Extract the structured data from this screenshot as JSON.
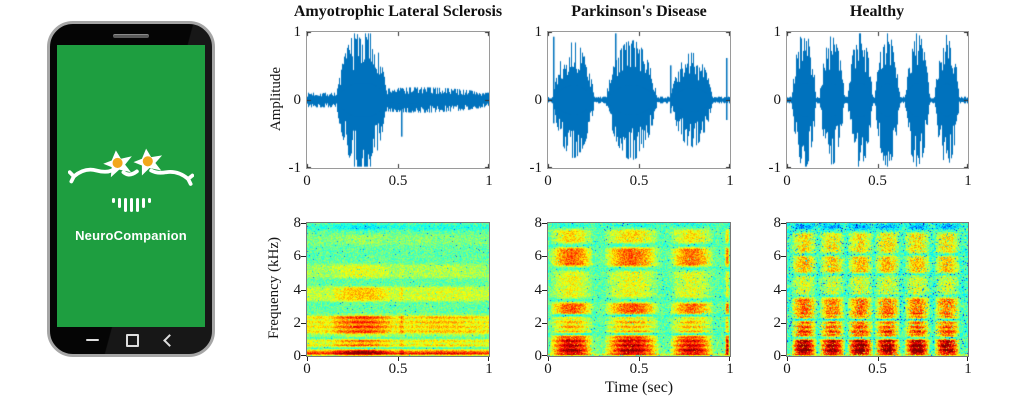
{
  "phone": {
    "app_name": "NeuroCompanion",
    "screen_color": "#1e9e40",
    "body_color": "#070707",
    "rim_color": "#a6a6a6",
    "logo_white": "#ffffff",
    "logo_accent": "#f2a71b",
    "soundwave_bars": [
      5,
      10,
      14,
      14,
      14,
      10,
      5
    ],
    "nav_icons": [
      "recents-minimize",
      "home-square",
      "back-chevron"
    ]
  },
  "figure": {
    "waveform_color": "#0072BD",
    "colormap": "jet",
    "grid": "off"
  },
  "chart_data": [
    {
      "type": "line",
      "title": "Amyotrophic Lateral Sclerosis",
      "ylabel": "Amplitude",
      "xlim": [
        0,
        1
      ],
      "ylim": [
        -1,
        1
      ],
      "xticks": [
        0,
        0.5,
        1
      ],
      "yticks": [
        -1,
        0,
        1
      ],
      "line_color": "#0072BD",
      "noise_floor": 0.11,
      "bursts": [
        {
          "center": 0.3,
          "width": 0.135,
          "amp": 0.97
        },
        {
          "center": 0.62,
          "width": 0.35,
          "amp": 0.08
        }
      ],
      "spikes": [
        {
          "t": 0.517,
          "up": 0.1,
          "down": 0.55
        }
      ],
      "seed": 7
    },
    {
      "type": "line",
      "title": "Parkinson's Disease",
      "ylabel": "",
      "xlim": [
        0,
        1
      ],
      "ylim": [
        -1,
        1
      ],
      "xticks": [
        0,
        0.5,
        1
      ],
      "yticks": [
        -1,
        0,
        1
      ],
      "line_color": "#0072BD",
      "noise_floor": 0.05,
      "bursts": [
        {
          "center": 0.14,
          "width": 0.115,
          "amp": 0.82
        },
        {
          "center": 0.46,
          "width": 0.14,
          "amp": 0.85
        },
        {
          "center": 0.79,
          "width": 0.115,
          "amp": 0.66
        }
      ],
      "spikes": [
        {
          "t": 0.025,
          "up": 0.95,
          "down": 0.35
        },
        {
          "t": 0.367,
          "up": 1.0,
          "down": 0.4
        },
        {
          "t": 0.672,
          "up": 0.52,
          "down": 0.2
        },
        {
          "t": 0.978,
          "up": 0.63,
          "down": 0.3
        }
      ],
      "seed": 13
    },
    {
      "type": "line",
      "title": "Healthy",
      "ylabel": "",
      "xlim": [
        0,
        1
      ],
      "ylim": [
        -1,
        1
      ],
      "xticks": [
        0,
        0.5,
        1
      ],
      "yticks": [
        -1,
        0,
        1
      ],
      "line_color": "#0072BD",
      "noise_floor": 0.05,
      "bursts": [
        {
          "center": 0.095,
          "width": 0.068,
          "amp": 0.98
        },
        {
          "center": 0.25,
          "width": 0.068,
          "amp": 0.92
        },
        {
          "center": 0.405,
          "width": 0.068,
          "amp": 0.98
        },
        {
          "center": 0.555,
          "width": 0.068,
          "amp": 0.95
        },
        {
          "center": 0.72,
          "width": 0.068,
          "amp": 0.97
        },
        {
          "center": 0.885,
          "width": 0.068,
          "amp": 0.93
        }
      ],
      "spikes": [],
      "seed": 21
    },
    {
      "type": "heatmap",
      "title": "",
      "ylabel": "Frequency (kHz)",
      "xlabel": "",
      "xlim": [
        0,
        1
      ],
      "ylim": [
        0,
        8
      ],
      "xticks": [
        0,
        0.5,
        1
      ],
      "yticks": [
        0,
        2,
        4,
        6,
        8
      ],
      "bg": 0.47,
      "act_floor": 0.45,
      "noise": 0.14,
      "stripe": 0.07,
      "speckle_p": 0.01,
      "speckle_s": 0.2,
      "bursts": [
        {
          "center": 0.3,
          "width": 0.17,
          "amp": 0.5
        },
        {
          "center": 0.52,
          "width": 0.015,
          "amp": 0.3
        },
        {
          "center": 0.75,
          "width": 0.2,
          "amp": 0.12
        }
      ],
      "bands": [
        {
          "f0": 0.0,
          "f1": 0.45,
          "g": 0.5
        },
        {
          "f0": 0.45,
          "f1": 1.1,
          "g": 0.28
        },
        {
          "f0": 1.2,
          "f1": 2.55,
          "g": 0.34
        },
        {
          "f0": 3.2,
          "f1": 4.25,
          "g": 0.22
        },
        {
          "f0": 4.6,
          "f1": 5.6,
          "g": 0.14
        },
        {
          "f0": 6.6,
          "f1": 7.4,
          "g": 0.06
        },
        {
          "f0": 7.5,
          "f1": 8.0,
          "g": -0.12
        }
      ],
      "base_bands": [
        {
          "f0": 0.0,
          "f1": 0.3,
          "g": 0.25
        }
      ],
      "seed": 31
    },
    {
      "type": "heatmap",
      "title": "",
      "ylabel": "",
      "xlabel": "Time (sec)",
      "xlim": [
        0,
        1
      ],
      "ylim": [
        0,
        8
      ],
      "xticks": [
        0,
        0.5,
        1
      ],
      "yticks": [
        0,
        2,
        4,
        6,
        8
      ],
      "bg": 0.45,
      "act_floor": 0.07,
      "noise": 0.16,
      "stripe": 0.07,
      "speckle_p": 0.02,
      "speckle_s": 0.22,
      "bursts": [
        {
          "center": 0.13,
          "width": 0.12,
          "amp": 0.95
        },
        {
          "center": 0.46,
          "width": 0.15,
          "amp": 0.95
        },
        {
          "center": 0.79,
          "width": 0.12,
          "amp": 0.88
        },
        {
          "center": 0.985,
          "width": 0.012,
          "amp": 0.9
        }
      ],
      "bands": [
        {
          "f0": 0.0,
          "f1": 1.3,
          "g": 0.52,
          "taper": 0.25
        },
        {
          "f0": 1.3,
          "f1": 2.4,
          "g": 0.22
        },
        {
          "f0": 2.45,
          "f1": 3.3,
          "g": 0.34
        },
        {
          "f0": 3.4,
          "f1": 5.2,
          "g": 0.16
        },
        {
          "f0": 5.3,
          "f1": 6.6,
          "g": 0.33
        },
        {
          "f0": 6.7,
          "f1": 7.7,
          "g": 0.2
        },
        {
          "f0": 7.75,
          "f1": 8.0,
          "g": -0.1
        }
      ],
      "base_bands": [
        {
          "f0": 0.0,
          "f1": 0.18,
          "g": 0.3
        }
      ],
      "seed": 41
    },
    {
      "type": "heatmap",
      "title": "",
      "ylabel": "",
      "xlabel": "",
      "xlim": [
        0,
        1
      ],
      "ylim": [
        0,
        8
      ],
      "xticks": [
        0,
        0.5,
        1
      ],
      "yticks": [
        0,
        2,
        4,
        6,
        8
      ],
      "bg": 0.43,
      "act_floor": 0.05,
      "noise": 0.2,
      "stripe": 0.08,
      "speckle_p": 0.05,
      "speckle_s": 0.25,
      "bursts": [
        {
          "center": 0.095,
          "width": 0.07,
          "amp": 0.98
        },
        {
          "center": 0.25,
          "width": 0.07,
          "amp": 0.92
        },
        {
          "center": 0.405,
          "width": 0.07,
          "amp": 0.98
        },
        {
          "center": 0.555,
          "width": 0.07,
          "amp": 0.95
        },
        {
          "center": 0.72,
          "width": 0.07,
          "amp": 0.97
        },
        {
          "center": 0.885,
          "width": 0.07,
          "amp": 0.93
        }
      ],
      "bands": [
        {
          "f0": 0.0,
          "f1": 1.1,
          "g": 0.6,
          "taper": 0.15
        },
        {
          "f0": 1.1,
          "f1": 2.2,
          "g": 0.42,
          "taper": 0.3
        },
        {
          "f0": 2.2,
          "f1": 3.6,
          "g": 0.34
        },
        {
          "f0": 3.6,
          "f1": 4.9,
          "g": 0.16
        },
        {
          "f0": 4.9,
          "f1": 6.1,
          "g": 0.26
        },
        {
          "f0": 6.1,
          "f1": 7.5,
          "g": 0.22
        },
        {
          "f0": 7.55,
          "f1": 8.0,
          "g": -0.15
        }
      ],
      "base_bands": [
        {
          "f0": 0.0,
          "f1": 0.14,
          "g": 0.42
        }
      ],
      "seed": 51
    }
  ]
}
